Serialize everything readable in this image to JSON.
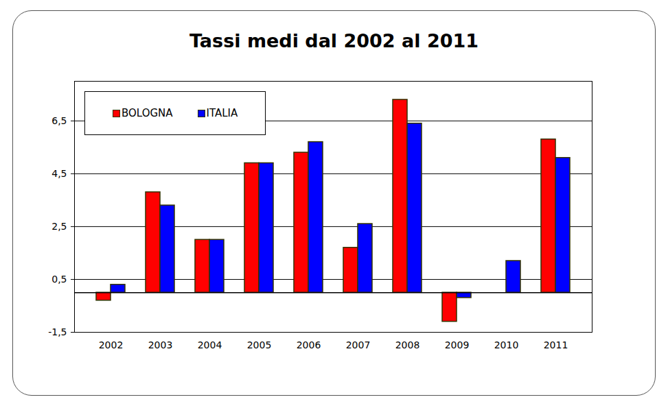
{
  "chart_data": {
    "type": "bar",
    "title": "Tassi medi dal 2002 al 2011",
    "categories": [
      "2002",
      "2003",
      "2004",
      "2005",
      "2006",
      "2007",
      "2008",
      "2009",
      "2010",
      "2011"
    ],
    "series": [
      {
        "name": "BOLOGNA",
        "color": "#ff0000",
        "values": [
          -0.3,
          3.8,
          2.0,
          4.9,
          5.3,
          1.7,
          7.3,
          -1.1,
          0,
          5.8
        ]
      },
      {
        "name": "ITALIA",
        "color": "#0000ff",
        "values": [
          0.3,
          3.3,
          2.0,
          4.9,
          5.7,
          2.6,
          6.4,
          -0.2,
          1.2,
          5.1
        ]
      }
    ],
    "ylim": [
      -1.5,
      8
    ],
    "yticks": [
      {
        "value": -1.5,
        "label": "-1,5"
      },
      {
        "value": 0.5,
        "label": "0,5"
      },
      {
        "value": 2.5,
        "label": "2,5"
      },
      {
        "value": 4.5,
        "label": "4,5"
      },
      {
        "value": 6.5,
        "label": "6,5"
      }
    ],
    "grid": true,
    "legend": "top-left"
  }
}
